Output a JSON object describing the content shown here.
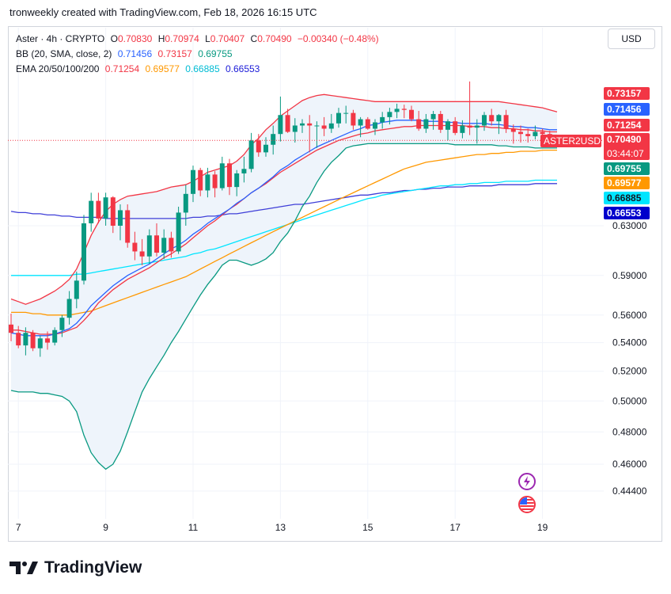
{
  "header": {
    "text": "tronweekly created with TradingView.com, Feb 18, 2026 16:15 UTC"
  },
  "currency_button": "USD",
  "legend": {
    "symbol": "Aster · 4h · CRYPTO",
    "o_label": "O",
    "o_value": "0.70830",
    "h_label": "H",
    "h_value": "0.70974",
    "l_label": "L",
    "l_value": "0.70407",
    "c_label": "C",
    "c_value": "0.70490",
    "change": "−0.00340 (−0.48%)",
    "bb_label": "BB (20, SMA, close, 2)",
    "bb_basis": "0.71456",
    "bb_upper": "0.73157",
    "bb_lower": "0.69755",
    "ema_label": "EMA 20/50/100/200",
    "ema20": "0.71254",
    "ema50": "0.69577",
    "ema100": "0.66885",
    "ema200": "0.66553"
  },
  "price_labels": {
    "bb_upper": "0.73157",
    "bb_basis": "0.71456",
    "ema20": "0.71254",
    "close": "0.70490",
    "countdown": "03:44:07",
    "symbol_tag": "ASTER2USD",
    "bb_lower": "0.69755",
    "ema50": "0.69577",
    "ema100": "0.66885",
    "ema200": "0.66553"
  },
  "colors": {
    "up": "#089981",
    "down": "#f23645",
    "bb_basis": "#2962ff",
    "bb_upper": "#f23645",
    "bb_lower": "#089981",
    "bb_fill": "#eef4fb",
    "ema20": "#f23645",
    "ema50": "#ff9800",
    "ema100": "#00e5ff",
    "ema200": "#3f3fd8",
    "ema200_label": "#0000cc",
    "grid": "#f0f3fa"
  },
  "brand": {
    "logo_text": "TradingView"
  },
  "chart_data": {
    "type": "candlestick",
    "title": "Aster · 4h · CRYPTO",
    "x_start": "2026-02-06T20:00",
    "x_interval": "4h",
    "x_ticks": [
      "7",
      "9",
      "11",
      "13",
      "15",
      "17",
      "19"
    ],
    "y_ticks": [
      "0.44400",
      "0.46000",
      "0.48000",
      "0.50000",
      "0.52000",
      "0.54000",
      "0.56000",
      "0.59000",
      "0.63000"
    ],
    "y_scale": "log",
    "ohlc": [
      [
        0.553,
        0.561,
        0.541,
        0.547
      ],
      [
        0.547,
        0.552,
        0.536,
        0.538
      ],
      [
        0.538,
        0.551,
        0.531,
        0.547
      ],
      [
        0.547,
        0.549,
        0.534,
        0.536
      ],
      [
        0.536,
        0.545,
        0.53,
        0.543
      ],
      [
        0.543,
        0.548,
        0.535,
        0.54
      ],
      [
        0.54,
        0.551,
        0.538,
        0.549
      ],
      [
        0.549,
        0.56,
        0.544,
        0.558
      ],
      [
        0.558,
        0.578,
        0.553,
        0.572
      ],
      [
        0.572,
        0.593,
        0.565,
        0.586
      ],
      [
        0.586,
        0.639,
        0.583,
        0.632
      ],
      [
        0.632,
        0.658,
        0.625,
        0.651
      ],
      [
        0.651,
        0.658,
        0.632,
        0.636
      ],
      [
        0.636,
        0.658,
        0.63,
        0.654
      ],
      [
        0.654,
        0.655,
        0.624,
        0.63
      ],
      [
        0.63,
        0.648,
        0.618,
        0.643
      ],
      [
        0.643,
        0.648,
        0.612,
        0.616
      ],
      [
        0.616,
        0.625,
        0.602,
        0.609
      ],
      [
        0.609,
        0.619,
        0.598,
        0.605
      ],
      [
        0.605,
        0.627,
        0.599,
        0.622
      ],
      [
        0.622,
        0.632,
        0.605,
        0.608
      ],
      [
        0.608,
        0.627,
        0.603,
        0.62
      ],
      [
        0.62,
        0.625,
        0.604,
        0.609
      ],
      [
        0.609,
        0.646,
        0.607,
        0.641
      ],
      [
        0.641,
        0.665,
        0.63,
        0.657
      ],
      [
        0.657,
        0.682,
        0.65,
        0.678
      ],
      [
        0.678,
        0.68,
        0.655,
        0.66
      ],
      [
        0.66,
        0.68,
        0.654,
        0.674
      ],
      [
        0.674,
        0.677,
        0.654,
        0.662
      ],
      [
        0.662,
        0.69,
        0.66,
        0.684
      ],
      [
        0.684,
        0.688,
        0.656,
        0.663
      ],
      [
        0.663,
        0.678,
        0.655,
        0.675
      ],
      [
        0.675,
        0.69,
        0.667,
        0.679
      ],
      [
        0.679,
        0.712,
        0.676,
        0.705
      ],
      [
        0.705,
        0.711,
        0.69,
        0.694
      ],
      [
        0.694,
        0.708,
        0.69,
        0.701
      ],
      [
        0.701,
        0.719,
        0.692,
        0.711
      ],
      [
        0.711,
        0.747,
        0.704,
        0.729
      ],
      [
        0.729,
        0.735,
        0.712,
        0.713
      ],
      [
        0.713,
        0.726,
        0.703,
        0.719
      ],
      [
        0.719,
        0.725,
        0.712,
        0.721
      ],
      [
        0.721,
        0.729,
        0.694,
        0.719
      ],
      [
        0.719,
        0.723,
        0.698,
        0.719
      ],
      [
        0.719,
        0.727,
        0.709,
        0.716
      ],
      [
        0.716,
        0.73,
        0.712,
        0.721
      ],
      [
        0.721,
        0.736,
        0.717,
        0.731
      ],
      [
        0.731,
        0.738,
        0.721,
        0.731
      ],
      [
        0.731,
        0.734,
        0.715,
        0.719
      ],
      [
        0.719,
        0.727,
        0.708,
        0.725
      ],
      [
        0.725,
        0.727,
        0.715,
        0.716
      ],
      [
        0.716,
        0.725,
        0.71,
        0.722
      ],
      [
        0.722,
        0.732,
        0.716,
        0.727
      ],
      [
        0.727,
        0.736,
        0.72,
        0.732
      ],
      [
        0.732,
        0.74,
        0.726,
        0.735
      ],
      [
        0.735,
        0.739,
        0.726,
        0.734
      ],
      [
        0.734,
        0.738,
        0.723,
        0.725
      ],
      [
        0.725,
        0.733,
        0.714,
        0.716
      ],
      [
        0.716,
        0.73,
        0.712,
        0.725
      ],
      [
        0.725,
        0.733,
        0.715,
        0.73
      ],
      [
        0.73,
        0.733,
        0.712,
        0.715
      ],
      [
        0.715,
        0.725,
        0.705,
        0.723
      ],
      [
        0.723,
        0.727,
        0.71,
        0.712
      ],
      [
        0.712,
        0.724,
        0.707,
        0.719
      ],
      [
        0.719,
        0.762,
        0.71,
        0.717
      ],
      [
        0.717,
        0.725,
        0.702,
        0.719
      ],
      [
        0.719,
        0.732,
        0.714,
        0.729
      ],
      [
        0.729,
        0.735,
        0.719,
        0.723
      ],
      [
        0.723,
        0.73,
        0.711,
        0.729
      ],
      [
        0.729,
        0.734,
        0.712,
        0.716
      ],
      [
        0.716,
        0.72,
        0.702,
        0.713
      ],
      [
        0.713,
        0.719,
        0.703,
        0.711
      ],
      [
        0.711,
        0.716,
        0.703,
        0.709
      ],
      [
        0.709,
        0.719,
        0.706,
        0.713
      ],
      [
        0.713,
        0.716,
        0.703,
        0.711
      ],
      [
        0.711,
        0.714,
        0.704,
        0.708
      ],
      [
        0.708,
        0.71,
        0.704,
        0.705
      ]
    ],
    "bb_upper": [
      0.572,
      0.57,
      0.568,
      0.57,
      0.572,
      0.575,
      0.578,
      0.582,
      0.587,
      0.595,
      0.608,
      0.622,
      0.633,
      0.642,
      0.648,
      0.652,
      0.655,
      0.656,
      0.657,
      0.658,
      0.659,
      0.661,
      0.663,
      0.664,
      0.665,
      0.668,
      0.672,
      0.676,
      0.678,
      0.68,
      0.682,
      0.686,
      0.692,
      0.701,
      0.707,
      0.715,
      0.721,
      0.728,
      0.733,
      0.738,
      0.743,
      0.746,
      0.748,
      0.749,
      0.748,
      0.747,
      0.746,
      0.745,
      0.744,
      0.743,
      0.742,
      0.742,
      0.742,
      0.742,
      0.742,
      0.742,
      0.742,
      0.742,
      0.742,
      0.742,
      0.742,
      0.742,
      0.742,
      0.742,
      0.742,
      0.742,
      0.742,
      0.742,
      0.741,
      0.74,
      0.739,
      0.738,
      0.737,
      0.736,
      0.734,
      0.732
    ],
    "bb_basis": [
      0.547,
      0.546,
      0.545,
      0.545,
      0.545,
      0.545,
      0.546,
      0.548,
      0.55,
      0.554,
      0.56,
      0.567,
      0.572,
      0.577,
      0.582,
      0.586,
      0.59,
      0.593,
      0.596,
      0.599,
      0.603,
      0.607,
      0.611,
      0.614,
      0.618,
      0.623,
      0.627,
      0.632,
      0.636,
      0.64,
      0.644,
      0.649,
      0.653,
      0.658,
      0.662,
      0.667,
      0.672,
      0.678,
      0.682,
      0.687,
      0.691,
      0.695,
      0.699,
      0.702,
      0.705,
      0.708,
      0.711,
      0.714,
      0.716,
      0.719,
      0.72,
      0.722,
      0.723,
      0.724,
      0.724,
      0.724,
      0.724,
      0.723,
      0.723,
      0.723,
      0.722,
      0.722,
      0.721,
      0.721,
      0.721,
      0.721,
      0.72,
      0.72,
      0.719,
      0.718,
      0.718,
      0.717,
      0.717,
      0.716,
      0.715,
      0.715
    ],
    "bb_lower": [
      0.507,
      0.506,
      0.506,
      0.506,
      0.505,
      0.505,
      0.504,
      0.503,
      0.5,
      0.493,
      0.478,
      0.467,
      0.461,
      0.457,
      0.46,
      0.468,
      0.48,
      0.493,
      0.506,
      0.515,
      0.523,
      0.531,
      0.54,
      0.548,
      0.557,
      0.566,
      0.575,
      0.583,
      0.59,
      0.598,
      0.602,
      0.602,
      0.6,
      0.598,
      0.6,
      0.603,
      0.608,
      0.617,
      0.624,
      0.634,
      0.646,
      0.655,
      0.667,
      0.677,
      0.685,
      0.691,
      0.698,
      0.7,
      0.701,
      0.702,
      0.702,
      0.702,
      0.702,
      0.702,
      0.702,
      0.702,
      0.702,
      0.702,
      0.702,
      0.702,
      0.702,
      0.701,
      0.701,
      0.701,
      0.701,
      0.701,
      0.701,
      0.7,
      0.7,
      0.699,
      0.699,
      0.699,
      0.698,
      0.698,
      0.698,
      0.698
    ],
    "ema20": [
      0.549,
      0.549,
      0.548,
      0.547,
      0.546,
      0.546,
      0.546,
      0.547,
      0.549,
      0.551,
      0.556,
      0.562,
      0.569,
      0.574,
      0.579,
      0.583,
      0.587,
      0.59,
      0.593,
      0.596,
      0.6,
      0.604,
      0.607,
      0.611,
      0.615,
      0.62,
      0.625,
      0.63,
      0.634,
      0.639,
      0.644,
      0.648,
      0.653,
      0.658,
      0.662,
      0.666,
      0.671,
      0.676,
      0.68,
      0.684,
      0.688,
      0.692,
      0.696,
      0.699,
      0.702,
      0.705,
      0.707,
      0.709,
      0.711,
      0.712,
      0.714,
      0.715,
      0.716,
      0.717,
      0.718,
      0.718,
      0.719,
      0.719,
      0.719,
      0.719,
      0.719,
      0.719,
      0.719,
      0.718,
      0.718,
      0.718,
      0.717,
      0.717,
      0.716,
      0.716,
      0.715,
      0.715,
      0.714,
      0.714,
      0.713,
      0.713
    ],
    "ema50": [
      0.562,
      0.562,
      0.562,
      0.561,
      0.561,
      0.56,
      0.56,
      0.56,
      0.56,
      0.561,
      0.562,
      0.563,
      0.565,
      0.567,
      0.569,
      0.571,
      0.573,
      0.575,
      0.577,
      0.579,
      0.581,
      0.583,
      0.585,
      0.587,
      0.589,
      0.592,
      0.595,
      0.598,
      0.601,
      0.604,
      0.607,
      0.61,
      0.613,
      0.616,
      0.619,
      0.622,
      0.625,
      0.628,
      0.631,
      0.634,
      0.637,
      0.64,
      0.643,
      0.646,
      0.649,
      0.652,
      0.655,
      0.658,
      0.661,
      0.664,
      0.667,
      0.67,
      0.673,
      0.676,
      0.679,
      0.681,
      0.683,
      0.685,
      0.686,
      0.687,
      0.688,
      0.689,
      0.69,
      0.691,
      0.692,
      0.692,
      0.693,
      0.693,
      0.694,
      0.694,
      0.695,
      0.695,
      0.695,
      0.696,
      0.696,
      0.696
    ],
    "ema100": [
      0.59,
      0.59,
      0.59,
      0.59,
      0.59,
      0.59,
      0.59,
      0.59,
      0.59,
      0.591,
      0.591,
      0.592,
      0.593,
      0.594,
      0.595,
      0.596,
      0.597,
      0.598,
      0.599,
      0.6,
      0.601,
      0.602,
      0.603,
      0.604,
      0.605,
      0.607,
      0.608,
      0.61,
      0.611,
      0.613,
      0.615,
      0.617,
      0.619,
      0.621,
      0.623,
      0.625,
      0.627,
      0.629,
      0.631,
      0.633,
      0.635,
      0.637,
      0.639,
      0.641,
      0.643,
      0.645,
      0.647,
      0.649,
      0.651,
      0.653,
      0.654,
      0.656,
      0.657,
      0.658,
      0.659,
      0.66,
      0.661,
      0.662,
      0.663,
      0.664,
      0.664,
      0.665,
      0.665,
      0.666,
      0.666,
      0.667,
      0.667,
      0.667,
      0.668,
      0.668,
      0.668,
      0.668,
      0.669,
      0.669,
      0.669,
      0.669
    ],
    "ema200": [
      0.642,
      0.641,
      0.641,
      0.64,
      0.64,
      0.639,
      0.639,
      0.638,
      0.638,
      0.637,
      0.637,
      0.637,
      0.637,
      0.636,
      0.636,
      0.636,
      0.636,
      0.636,
      0.636,
      0.636,
      0.636,
      0.636,
      0.636,
      0.636,
      0.636,
      0.637,
      0.637,
      0.638,
      0.638,
      0.639,
      0.64,
      0.64,
      0.641,
      0.642,
      0.643,
      0.644,
      0.645,
      0.646,
      0.647,
      0.648,
      0.648,
      0.649,
      0.65,
      0.651,
      0.652,
      0.653,
      0.654,
      0.655,
      0.656,
      0.656,
      0.657,
      0.658,
      0.658,
      0.659,
      0.66,
      0.66,
      0.661,
      0.661,
      0.662,
      0.662,
      0.663,
      0.663,
      0.663,
      0.664,
      0.664,
      0.664,
      0.664,
      0.665,
      0.665,
      0.665,
      0.665,
      0.665,
      0.666,
      0.666,
      0.666,
      0.666
    ]
  }
}
